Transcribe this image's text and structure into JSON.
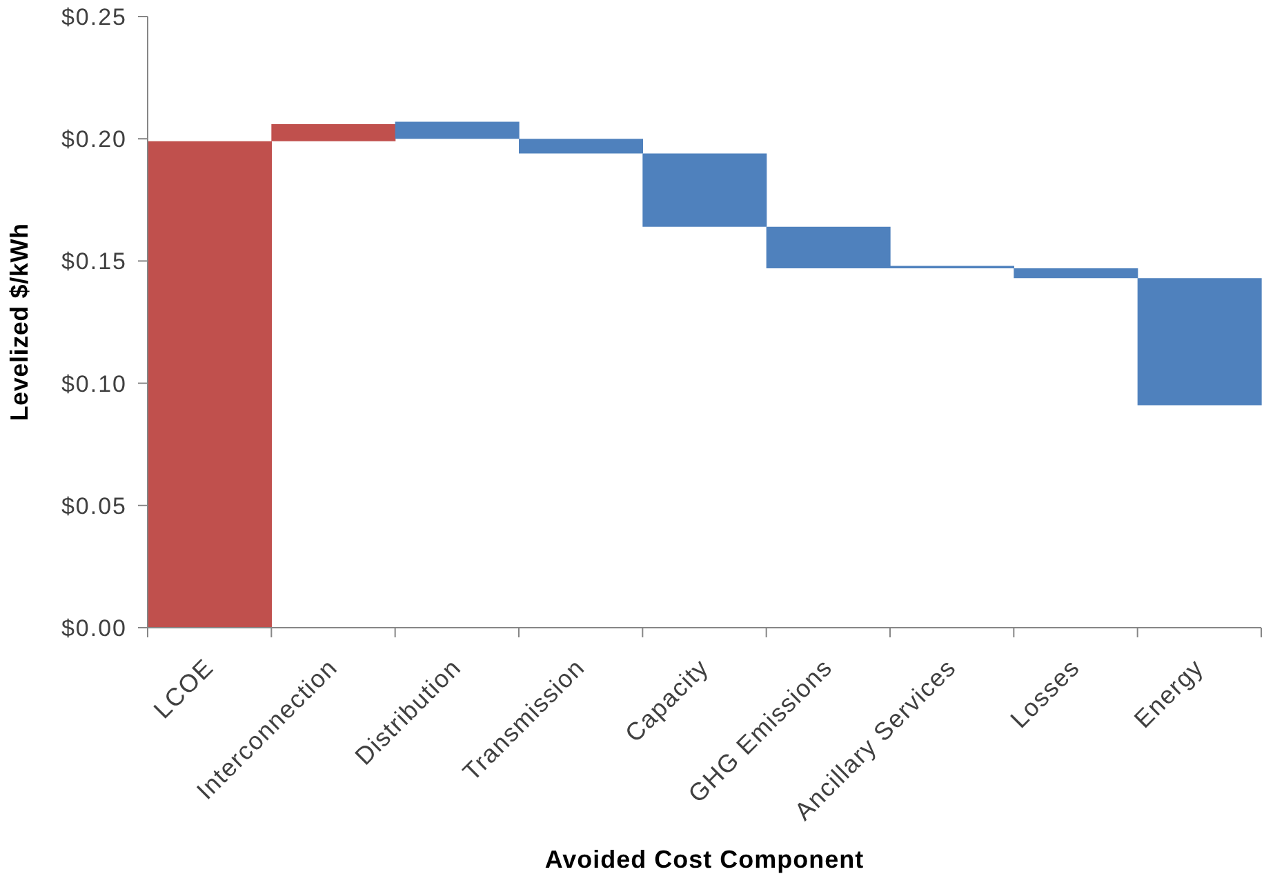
{
  "chart_data": {
    "type": "bar",
    "xlabel": "Avoided Cost Component",
    "ylabel": "Levelized $/kWh",
    "categories": [
      "LCOE",
      "Interconnection",
      "Distribution",
      "Transmission",
      "Capacity",
      "GHG Emissions",
      "Ancillary Services",
      "Losses",
      "Energy"
    ],
    "values": [
      0.199,
      0.007,
      0.007,
      0.006,
      0.03,
      0.017,
      0.001,
      0.004,
      0.052
    ],
    "base": [
      0,
      0.199,
      0.2,
      0.194,
      0.164,
      0.147,
      0.147,
      0.143,
      0.091
    ],
    "colors": [
      "#c0504d",
      "#c0504d",
      "#4f81bd",
      "#4f81bd",
      "#4f81bd",
      "#4f81bd",
      "#4f81bd",
      "#4f81bd",
      "#4f81bd"
    ],
    "ylim": [
      0,
      0.25
    ],
    "yticks": [
      {
        "value": 0,
        "label": "$0.00"
      },
      {
        "value": 0.05,
        "label": "$0.05"
      },
      {
        "value": 0.1,
        "label": "$0.10"
      },
      {
        "value": 0.15,
        "label": "$0.15"
      },
      {
        "value": 0.2,
        "label": "$0.20"
      },
      {
        "value": 0.25,
        "label": "$0.25"
      }
    ]
  }
}
